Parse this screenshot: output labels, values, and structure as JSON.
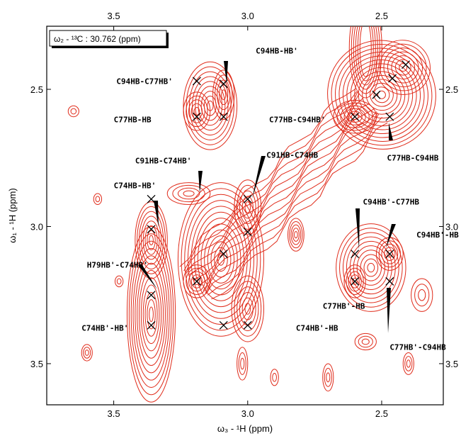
{
  "chart_data": {
    "type": "contour",
    "info_box": "ω₂ - ¹³C : 30.762  (ppm)",
    "xlabel": "ω₃ - ¹H  (ppm)",
    "ylabel": "ω₁ - ¹H  (ppm)",
    "xlim": [
      3.75,
      2.27
    ],
    "ylim": [
      2.27,
      3.65
    ],
    "x_ticks": [
      {
        "value": 3.5,
        "label": "3.5"
      },
      {
        "value": 3.0,
        "label": "3.0"
      },
      {
        "value": 2.5,
        "label": "2.5"
      }
    ],
    "y_ticks": [
      {
        "value": 2.5,
        "label": "2.5"
      },
      {
        "value": 3.0,
        "label": "3.0"
      },
      {
        "value": 3.5,
        "label": "3.5"
      }
    ],
    "contour_color": "#e02b1a",
    "peaks": [
      {
        "x": 3.19,
        "y": 2.47
      },
      {
        "x": 3.09,
        "y": 2.48
      },
      {
        "x": 3.19,
        "y": 2.6
      },
      {
        "x": 3.09,
        "y": 2.6
      },
      {
        "x": 3.36,
        "y": 2.9
      },
      {
        "x": 3.36,
        "y": 3.01
      },
      {
        "x": 3.0,
        "y": 2.9
      },
      {
        "x": 3.0,
        "y": 3.02
      },
      {
        "x": 3.09,
        "y": 3.1
      },
      {
        "x": 3.19,
        "y": 3.2
      },
      {
        "x": 3.36,
        "y": 3.25
      },
      {
        "x": 3.36,
        "y": 3.36
      },
      {
        "x": 3.09,
        "y": 3.36
      },
      {
        "x": 3.0,
        "y": 3.36
      },
      {
        "x": 2.6,
        "y": 2.6
      },
      {
        "x": 2.47,
        "y": 2.6
      },
      {
        "x": 2.6,
        "y": 3.1
      },
      {
        "x": 2.47,
        "y": 3.1
      },
      {
        "x": 2.6,
        "y": 3.2
      },
      {
        "x": 2.47,
        "y": 3.2
      },
      {
        "x": 2.41,
        "y": 2.41
      },
      {
        "x": 2.46,
        "y": 2.46
      },
      {
        "x": 2.52,
        "y": 2.52
      }
    ],
    "annotations": [
      {
        "text": "C94HB-HB'",
        "x": 2.97,
        "y": 2.37
      },
      {
        "text": "C94HB-C77HB'",
        "x": 3.49,
        "y": 2.48
      },
      {
        "text": "C77HB-HB",
        "x": 3.5,
        "y": 2.62
      },
      {
        "text": "C77HB-C94HB'",
        "x": 2.92,
        "y": 2.62
      },
      {
        "text": "C91HB-C74HB'",
        "x": 3.42,
        "y": 2.77
      },
      {
        "text": "C91HB-C74HB",
        "x": 2.93,
        "y": 2.75
      },
      {
        "text": "C77HB-C94HB",
        "x": 2.48,
        "y": 2.76
      },
      {
        "text": "C74HB-HB'",
        "x": 3.5,
        "y": 2.86
      },
      {
        "text": "C94HB'-C77HB",
        "x": 2.57,
        "y": 2.92
      },
      {
        "text": "C94HB'-HB",
        "x": 2.37,
        "y": 3.04
      },
      {
        "text": "H79HB'-C74HB'",
        "x": 3.6,
        "y": 3.15
      },
      {
        "text": "C77HB'-HB",
        "x": 2.72,
        "y": 3.3
      },
      {
        "text": "C74HB'-HB'",
        "x": 3.62,
        "y": 3.38
      },
      {
        "text": "C74HB'-HB",
        "x": 2.82,
        "y": 3.38
      },
      {
        "text": "C77HB'-C94HB",
        "x": 2.47,
        "y": 3.45
      }
    ]
  }
}
